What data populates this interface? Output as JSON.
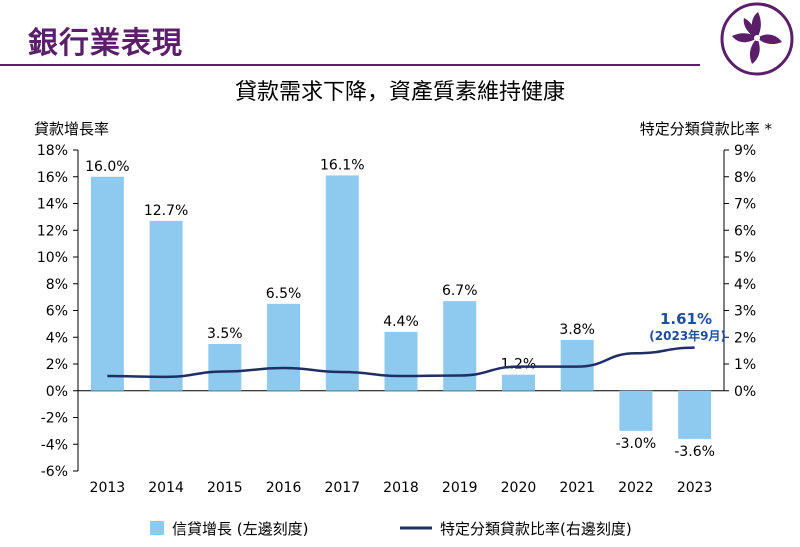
{
  "page": {
    "title": "銀行業表現",
    "logo_icon": "bauhinia-flower-icon"
  },
  "chart_data": {
    "type": "bar+line",
    "title": "貸款需求下降，資產質素維持健康",
    "left_axis_title": "貸款增長率",
    "right_axis_title": "特定分類貸款比率 *",
    "left_ylim": [
      -6,
      18
    ],
    "left_ticks": [
      "18%",
      "16%",
      "14%",
      "12%",
      "10%",
      "8%",
      "6%",
      "4%",
      "2%",
      "0%",
      "-2%",
      "-4%",
      "-6%"
    ],
    "right_ylim": [
      -3,
      9
    ],
    "right_ticks": [
      "9%",
      "8%",
      "7%",
      "6%",
      "5%",
      "4%",
      "3%",
      "2%",
      "1%",
      "0%"
    ],
    "categories": [
      "2013",
      "2014",
      "2015",
      "2016",
      "2017",
      "2018",
      "2019",
      "2020",
      "2021",
      "2022",
      "2023"
    ],
    "series": [
      {
        "name": "信貸增長 (左邊刻度)",
        "type": "bar",
        "axis": "left",
        "color": "#8ec9f0",
        "values": [
          16.0,
          12.7,
          3.5,
          6.5,
          16.1,
          4.4,
          6.7,
          1.2,
          3.8,
          -3.0,
          -3.6
        ],
        "labels": [
          "16.0%",
          "12.7%",
          "3.5%",
          "6.5%",
          "16.1%",
          "4.4%",
          "6.7%",
          "1.2%",
          "3.8%",
          "-3.0%",
          "-3.6%"
        ]
      },
      {
        "name": "特定分類貸款比率(右邊刻度)",
        "type": "line",
        "axis": "right",
        "color": "#1f2f66",
        "values": [
          0.55,
          0.52,
          0.72,
          0.85,
          0.7,
          0.55,
          0.57,
          0.9,
          0.9,
          1.4,
          1.61
        ]
      }
    ],
    "annotation": {
      "value_text": "1.61%",
      "sub_text": "(2023年9月)",
      "color": "#1f4ea0"
    },
    "legend_position": "bottom",
    "grid": false
  }
}
